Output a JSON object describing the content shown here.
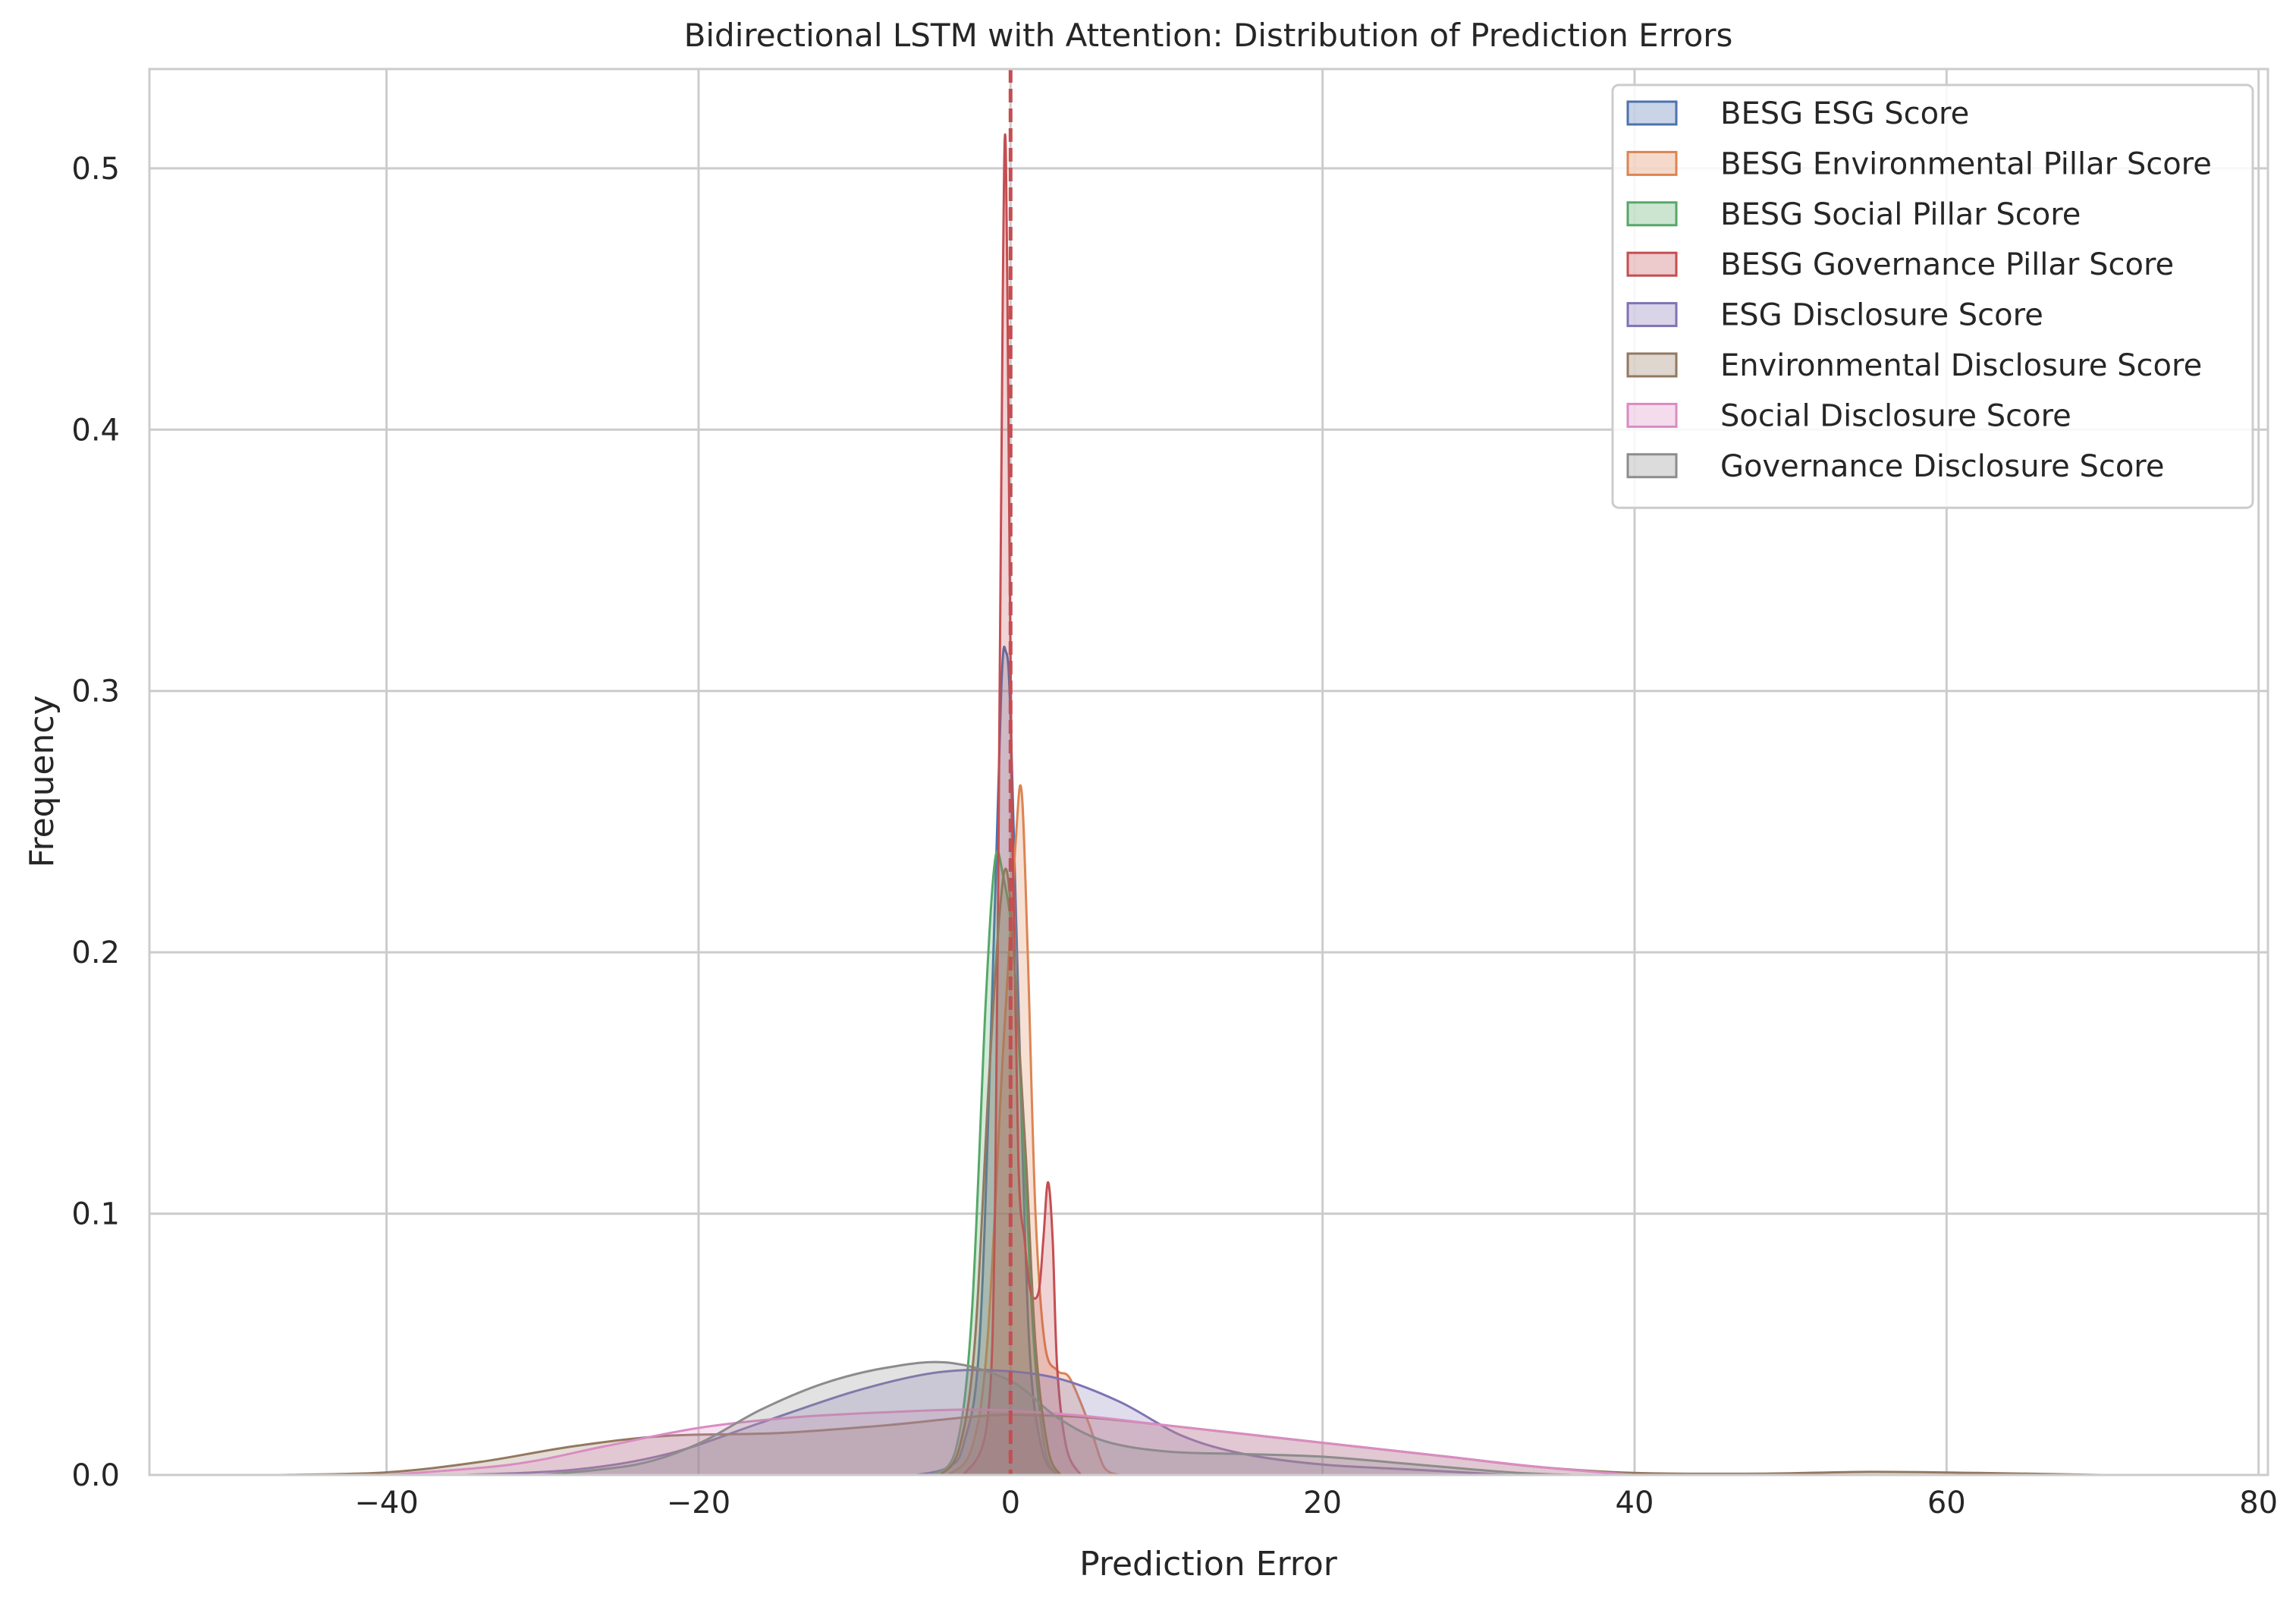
{
  "chart_data": {
    "type": "area",
    "title": "Bidirectional LSTM with Attention: Distribution of Prediction Errors",
    "xlabel": "Prediction Error",
    "ylabel": "Frequency",
    "xlim": [
      -55.2,
      80.6
    ],
    "ylim": [
      0,
      0.538
    ],
    "x_ticks": [
      -40,
      -20,
      0,
      20,
      40,
      60,
      80
    ],
    "x_tick_labels": [
      "−40",
      "−20",
      "0",
      "20",
      "40",
      "60",
      "80"
    ],
    "y_ticks": [
      0.0,
      0.1,
      0.2,
      0.3,
      0.4,
      0.5
    ],
    "y_tick_labels": [
      "0.0",
      "0.1",
      "0.2",
      "0.3",
      "0.4",
      "0.5"
    ],
    "grid": true,
    "legend_position": "top-right",
    "reference_line": {
      "x": 0,
      "color": "#c44e52",
      "style": "dashed"
    },
    "series": [
      {
        "name": "BESG ESG Score",
        "color": "#4c72b0",
        "points": [
          [
            -6,
            0
          ],
          [
            -4,
            0.003
          ],
          [
            -3,
            0.012
          ],
          [
            -2,
            0.05
          ],
          [
            -1.2,
            0.18
          ],
          [
            -0.6,
            0.3
          ],
          [
            -0.3,
            0.315
          ],
          [
            0,
            0.29
          ],
          [
            0.6,
            0.16
          ],
          [
            1.2,
            0.05
          ],
          [
            2,
            0.01
          ],
          [
            3,
            0
          ]
        ]
      },
      {
        "name": "BESG Environmental Pillar Score",
        "color": "#dd8452",
        "points": [
          [
            -4,
            0
          ],
          [
            -2.5,
            0.01
          ],
          [
            -1.5,
            0.05
          ],
          [
            -0.5,
            0.16
          ],
          [
            0.3,
            0.24
          ],
          [
            0.7,
            0.262
          ],
          [
            1.1,
            0.2
          ],
          [
            1.6,
            0.1
          ],
          [
            2.2,
            0.05
          ],
          [
            3,
            0.04
          ],
          [
            3.8,
            0.037
          ],
          [
            5,
            0.02
          ],
          [
            6,
            0.003
          ],
          [
            7,
            0
          ]
        ]
      },
      {
        "name": "BESG Social Pillar Score",
        "color": "#55a868",
        "points": [
          [
            -5,
            0
          ],
          [
            -3.5,
            0.01
          ],
          [
            -2.5,
            0.06
          ],
          [
            -1.6,
            0.18
          ],
          [
            -1,
            0.235
          ],
          [
            -0.5,
            0.23
          ],
          [
            0.2,
            0.2
          ],
          [
            0.9,
            0.12
          ],
          [
            1.5,
            0.05
          ],
          [
            2.2,
            0.01
          ],
          [
            3,
            0
          ]
        ]
      },
      {
        "name": "BESG Governance Pillar Score",
        "color": "#c44e52",
        "points": [
          [
            -3,
            0
          ],
          [
            -1.5,
            0.02
          ],
          [
            -1,
            0.1
          ],
          [
            -0.7,
            0.3
          ],
          [
            -0.5,
            0.45
          ],
          [
            -0.35,
            0.513
          ],
          [
            -0.2,
            0.45
          ],
          [
            0.1,
            0.25
          ],
          [
            0.5,
            0.12
          ],
          [
            0.9,
            0.09
          ],
          [
            1.3,
            0.07
          ],
          [
            1.8,
            0.07
          ],
          [
            2.1,
            0.09
          ],
          [
            2.4,
            0.112
          ],
          [
            2.7,
            0.09
          ],
          [
            3,
            0.04
          ],
          [
            3.6,
            0.01
          ],
          [
            4.5,
            0
          ]
        ]
      },
      {
        "name": "ESG Disclosure Score",
        "color": "#8172b3",
        "points": [
          [
            -35,
            0
          ],
          [
            -28,
            0.002
          ],
          [
            -22,
            0.008
          ],
          [
            -16,
            0.02
          ],
          [
            -10,
            0.032
          ],
          [
            -5,
            0.039
          ],
          [
            -1,
            0.04
          ],
          [
            3,
            0.037
          ],
          [
            7,
            0.028
          ],
          [
            11,
            0.015
          ],
          [
            15,
            0.008
          ],
          [
            20,
            0.004
          ],
          [
            26,
            0.002
          ],
          [
            32,
            0
          ]
        ]
      },
      {
        "name": "Environmental Disclosure Score",
        "color": "#937860",
        "points": [
          [
            -47,
            0
          ],
          [
            -40,
            0.001
          ],
          [
            -34,
            0.005
          ],
          [
            -28,
            0.011
          ],
          [
            -22,
            0.015
          ],
          [
            -15,
            0.016
          ],
          [
            -8,
            0.019
          ],
          [
            -3,
            0.022
          ],
          [
            0,
            0.023
          ],
          [
            5,
            0.022
          ],
          [
            10,
            0.019
          ],
          [
            16,
            0.015
          ],
          [
            22,
            0.011
          ],
          [
            28,
            0.007
          ],
          [
            34,
            0.003
          ],
          [
            40,
            0.0008
          ],
          [
            48,
            0.0005
          ],
          [
            55,
            0.0012
          ],
          [
            62,
            0.0008
          ],
          [
            70,
            0
          ]
        ]
      },
      {
        "name": "Social Disclosure Score",
        "color": "#da8bc3",
        "points": [
          [
            -40,
            0
          ],
          [
            -32,
            0.004
          ],
          [
            -26,
            0.011
          ],
          [
            -20,
            0.018
          ],
          [
            -14,
            0.022
          ],
          [
            -8,
            0.024
          ],
          [
            -2,
            0.025
          ],
          [
            4,
            0.023
          ],
          [
            10,
            0.019
          ],
          [
            16,
            0.015
          ],
          [
            22,
            0.011
          ],
          [
            28,
            0.007
          ],
          [
            34,
            0.003
          ],
          [
            40,
            0
          ]
        ]
      },
      {
        "name": "Governance Disclosure Score",
        "color": "#8c8c8c",
        "points": [
          [
            -30,
            0
          ],
          [
            -24,
            0.004
          ],
          [
            -20,
            0.012
          ],
          [
            -16,
            0.025
          ],
          [
            -12,
            0.035
          ],
          [
            -8,
            0.041
          ],
          [
            -4,
            0.043
          ],
          [
            0,
            0.036
          ],
          [
            3,
            0.022
          ],
          [
            6,
            0.013
          ],
          [
            10,
            0.009
          ],
          [
            15,
            0.008
          ],
          [
            20,
            0.007
          ],
          [
            26,
            0.004
          ],
          [
            32,
            0.001
          ],
          [
            36,
            0
          ]
        ]
      },
      {
        "name": "",
        "color": "#937860",
        "points": [
          [
            -4.5,
            0
          ],
          [
            -3.3,
            0.01
          ],
          [
            -2.3,
            0.05
          ],
          [
            -1.4,
            0.15
          ],
          [
            -0.7,
            0.215
          ],
          [
            -0.2,
            0.23
          ],
          [
            0.4,
            0.18
          ],
          [
            1,
            0.12
          ],
          [
            1.6,
            0.05
          ],
          [
            2.4,
            0.01
          ],
          [
            3.2,
            0
          ]
        ]
      }
    ]
  }
}
